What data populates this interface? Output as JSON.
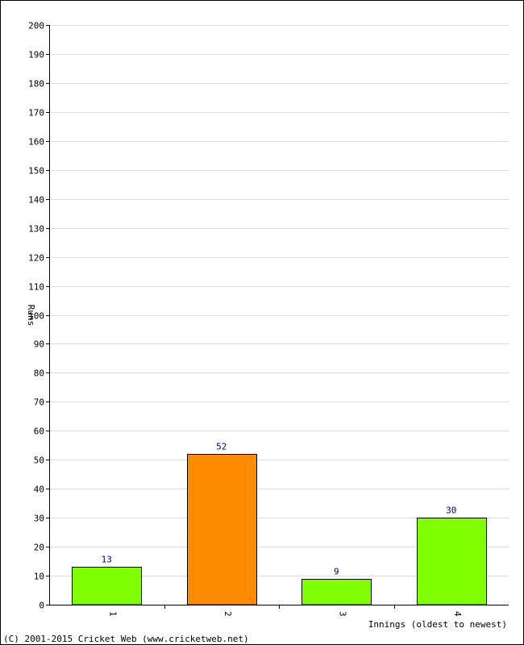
{
  "chart_data": {
    "type": "bar",
    "categories": [
      "1",
      "2",
      "3",
      "4"
    ],
    "values": [
      13,
      52,
      9,
      30
    ],
    "bar_colors": [
      "#80ff00",
      "#ff8c00",
      "#80ff00",
      "#80ff00"
    ],
    "ylabel": "Runs",
    "xlabel": "Innings (oldest to newest)",
    "ylim": [
      0,
      200
    ],
    "ytick_step": 10,
    "grid": true,
    "grid_color": "#dddddd",
    "value_label_color": "#000080",
    "bar_outline_color": "#000000"
  },
  "footer": {
    "copyright": "(C) 2001-2015 Cricket Web (www.cricketweb.net)"
  }
}
